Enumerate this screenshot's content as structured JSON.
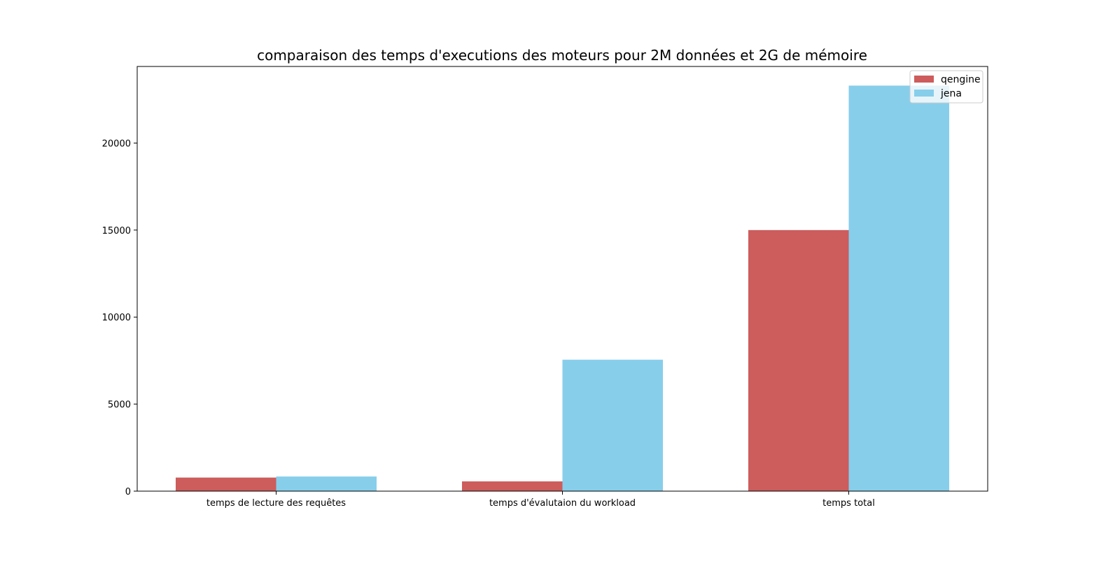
{
  "chart_data": {
    "type": "bar",
    "title": "comparaison des temps d'executions des moteurs pour 2M données et 2G de mémoire",
    "xlabel": "",
    "ylabel": "",
    "categories": [
      "temps de lecture des requêtes",
      "temps d'évalutaion du workload",
      "temps total"
    ],
    "series": [
      {
        "name": "qengine",
        "color": "#cd5c5c",
        "values": [
          780,
          560,
          15000
        ]
      },
      {
        "name": "jena",
        "color": "#87ceeb",
        "values": [
          840,
          7550,
          23300
        ]
      }
    ],
    "ylim": [
      0,
      24400
    ],
    "yticks": [
      0,
      5000,
      10000,
      15000,
      20000
    ],
    "grid": false,
    "legend_position": "top-right"
  }
}
